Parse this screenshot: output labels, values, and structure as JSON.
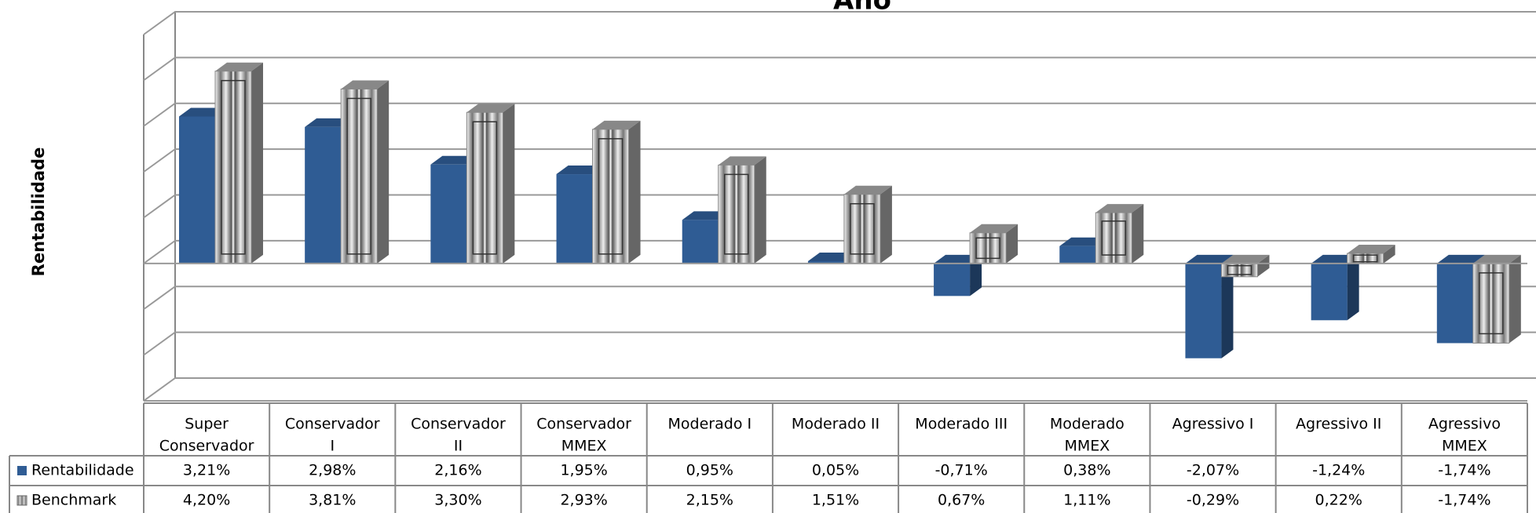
{
  "chart_data": {
    "type": "bar3d",
    "title": "Ano",
    "y_label": "Rentabilidade",
    "categories": [
      [
        "Super",
        "Conservador"
      ],
      [
        "Conservador",
        "I"
      ],
      [
        "Conservador",
        "II"
      ],
      [
        "Conservador",
        "MMEX"
      ],
      [
        "Moderado I"
      ],
      [
        "Moderado II"
      ],
      [
        "Moderado III"
      ],
      [
        "Moderado",
        "MMEX"
      ],
      [
        "Agressivo I"
      ],
      [
        "Agressivo II"
      ],
      [
        "Agressivo",
        "MMEX"
      ]
    ],
    "series": [
      {
        "name": "Rentabilidade",
        "color": "#2f5c94",
        "values": [
          3.21,
          2.98,
          2.16,
          1.95,
          0.95,
          0.05,
          -0.71,
          0.38,
          -2.07,
          -1.24,
          -1.74
        ],
        "value_labels": [
          "3,21%",
          "2,98%",
          "2,16%",
          "1,95%",
          "0,95%",
          "0,05%",
          "-0,71%",
          "0,38%",
          "-2,07%",
          "-1,24%",
          "-1,74%"
        ]
      },
      {
        "name": "Benchmark",
        "color": "#9a9a9a",
        "values": [
          4.2,
          3.81,
          3.3,
          2.93,
          2.15,
          1.51,
          0.67,
          1.11,
          -0.29,
          0.22,
          -1.74
        ],
        "value_labels": [
          "4,20%",
          "3,81%",
          "3,30%",
          "2,93%",
          "2,15%",
          "1,51%",
          "0,67%",
          "1,11%",
          "-0,29%",
          "0,22%",
          "-1,74%"
        ]
      }
    ],
    "ylim": [
      -3,
      5
    ],
    "yticks": [
      -3,
      -2,
      -1,
      0,
      1,
      2,
      3,
      4,
      5
    ],
    "grid": true,
    "data_table": true
  }
}
